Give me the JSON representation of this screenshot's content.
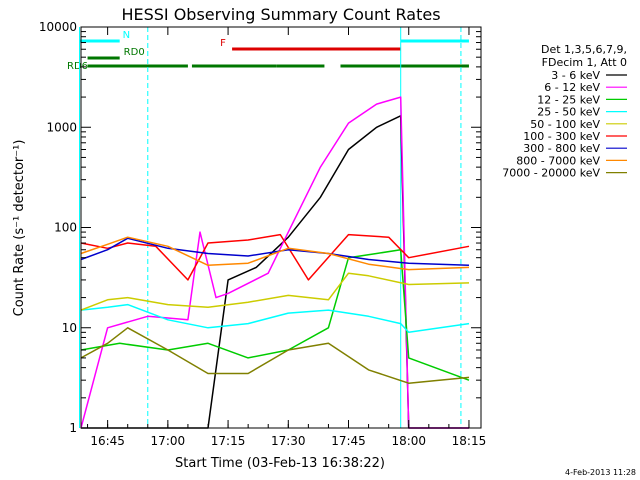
{
  "chart_data": {
    "type": "line",
    "title": "HESSI Observing Summary Count Rates",
    "xlabel": "Start Time (03-Feb-13 16:38:22)",
    "ylabel": "Count Rate (s⁻¹ detector⁻¹)",
    "y_scale": "log",
    "ylim": [
      1,
      10000
    ],
    "xlim": [
      "16:38:22",
      "18:18:00"
    ],
    "x_ticks": [
      "16:45",
      "17:00",
      "17:15",
      "17:30",
      "17:45",
      "18:00",
      "18:15"
    ],
    "y_ticks": [
      "1",
      "10",
      "100",
      "1000",
      "10000"
    ],
    "legend_placement": "right",
    "legend_header": [
      "Det 1,3,5,6,7,9,",
      "FDecim 1, Att 0"
    ],
    "timestamp": "4-Feb-2013 11:28",
    "series": [
      {
        "name": "3 - 6 keV",
        "color": "#000000",
        "x": [
          "16:38",
          "16:50",
          "17:00",
          "17:10",
          "17:15",
          "17:22",
          "17:30",
          "17:38",
          "17:45",
          "17:52",
          "17:58",
          "18:00",
          "18:15"
        ],
        "values": [
          1,
          1,
          1,
          1,
          30,
          40,
          80,
          200,
          600,
          1000,
          1300,
          1,
          1
        ]
      },
      {
        "name": "6 - 12 keV",
        "color": "#ff00ff",
        "x": [
          "16:38",
          "16:45",
          "16:55",
          "17:05",
          "17:08",
          "17:12",
          "17:15",
          "17:25",
          "17:30",
          "17:38",
          "17:45",
          "17:52",
          "17:58",
          "18:00",
          "18:15"
        ],
        "values": [
          1,
          10,
          13,
          12,
          90,
          20,
          22,
          35,
          90,
          400,
          1100,
          1700,
          2000,
          1,
          1
        ]
      },
      {
        "name": "12 - 25 keV",
        "color": "#00cc00",
        "x": [
          "16:38",
          "16:48",
          "17:00",
          "17:10",
          "17:20",
          "17:30",
          "17:40",
          "17:45",
          "17:52",
          "17:58",
          "18:00",
          "18:15"
        ],
        "values": [
          6,
          7,
          6,
          7,
          5,
          6,
          10,
          50,
          55,
          60,
          5,
          3
        ]
      },
      {
        "name": "25 - 50 keV",
        "color": "#00ffff",
        "x": [
          "16:38",
          "16:45",
          "16:50",
          "17:00",
          "17:10",
          "17:20",
          "17:30",
          "17:40",
          "17:50",
          "17:58",
          "18:00",
          "18:15"
        ],
        "values": [
          15,
          16,
          17,
          12,
          10,
          11,
          14,
          15,
          13,
          11,
          9,
          11
        ]
      },
      {
        "name": "50 - 100 keV",
        "color": "#cccc00",
        "x": [
          "16:38",
          "16:45",
          "16:50",
          "17:00",
          "17:10",
          "17:20",
          "17:30",
          "17:40",
          "17:45",
          "17:50",
          "18:00",
          "18:15"
        ],
        "values": [
          15,
          19,
          20,
          17,
          16,
          18,
          21,
          19,
          35,
          33,
          27,
          28
        ]
      },
      {
        "name": "100 - 300 keV",
        "color": "#ff0000",
        "x": [
          "16:38",
          "16:45",
          "16:50",
          "16:57",
          "17:05",
          "17:10",
          "17:20",
          "17:28",
          "17:35",
          "17:45",
          "17:55",
          "18:00",
          "18:15"
        ],
        "values": [
          70,
          62,
          70,
          65,
          30,
          70,
          75,
          85,
          30,
          85,
          80,
          50,
          65
        ]
      },
      {
        "name": "300 - 800 keV",
        "color": "#0000cc",
        "x": [
          "16:38",
          "16:45",
          "16:50",
          "17:00",
          "17:10",
          "17:20",
          "17:30",
          "17:40",
          "17:50",
          "18:00",
          "18:15"
        ],
        "values": [
          48,
          60,
          78,
          62,
          55,
          52,
          60,
          55,
          48,
          44,
          42
        ]
      },
      {
        "name": "800 - 7000 keV",
        "color": "#ff8800",
        "x": [
          "16:38",
          "16:45",
          "16:50",
          "17:00",
          "17:10",
          "17:20",
          "17:30",
          "17:40",
          "17:50",
          "18:00",
          "18:15"
        ],
        "values": [
          55,
          68,
          80,
          65,
          42,
          44,
          62,
          55,
          43,
          38,
          40
        ]
      },
      {
        "name": "7000 - 20000 keV",
        "color": "#808000",
        "x": [
          "16:38",
          "16:45",
          "16:50",
          "17:00",
          "17:10",
          "17:20",
          "17:30",
          "17:40",
          "17:50",
          "18:00",
          "18:15"
        ],
        "values": [
          5,
          7,
          10,
          6,
          3.5,
          3.5,
          6,
          7,
          3.8,
          2.8,
          3.2
        ]
      }
    ],
    "flags": [
      {
        "label": "N",
        "color": "#00ffff",
        "segments": [
          [
            "16:38",
            "16:48"
          ],
          [
            "17:58",
            "18:15"
          ]
        ]
      },
      {
        "label": "F",
        "color": "#dd0000",
        "segments": [
          [
            "17:16",
            "17:58"
          ]
        ]
      },
      {
        "label": "RD0",
        "color": "#007700",
        "segments": [
          [
            "16:40",
            "16:48"
          ]
        ]
      },
      {
        "label": "RD6",
        "color": "#007700",
        "segments": [
          [
            "16:40",
            "17:05"
          ],
          [
            "17:06",
            "17:27"
          ],
          [
            "17:27",
            "17:39"
          ],
          [
            "17:43",
            "18:15"
          ]
        ]
      }
    ],
    "vertical_markers": [
      {
        "color": "#00ffff",
        "style": "solid",
        "x": "16:38"
      },
      {
        "color": "#00ffff",
        "style": "dashed",
        "x": "16:55"
      },
      {
        "color": "#00ffff",
        "style": "solid",
        "x": "17:58"
      },
      {
        "color": "#00ffff",
        "style": "dashed",
        "x": "18:13"
      }
    ]
  }
}
